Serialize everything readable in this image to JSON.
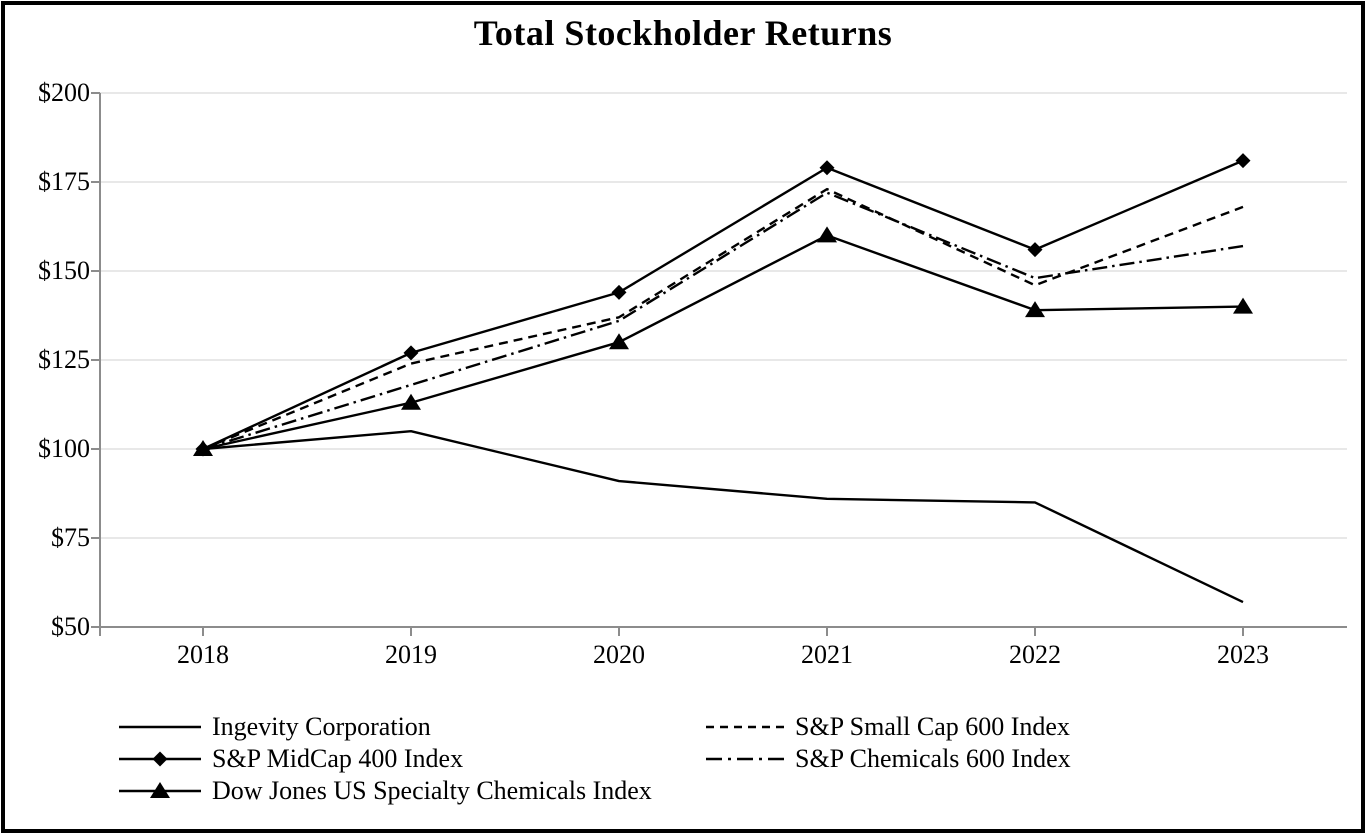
{
  "title": "Total Stockholder Returns",
  "colors": {
    "series_line": "#000000",
    "gridline": "#d9d9d9",
    "axis": "#8c8c8c",
    "border": "#000000",
    "background": "#ffffff"
  },
  "chart_data": {
    "type": "line",
    "title": "Total Stockholder Returns",
    "x": [
      2018,
      2019,
      2020,
      2021,
      2022,
      2023
    ],
    "x_tick_labels": [
      "2018",
      "2019",
      "2020",
      "2021",
      "2022",
      "2023"
    ],
    "y_tick_labels": [
      "$200",
      "$175",
      "$150",
      "$125",
      "$100",
      "$75",
      "$50"
    ],
    "ylim": [
      50,
      200
    ],
    "y_tick_step": 25,
    "grid": "horizontal-light",
    "legend_position": "bottom, two columns",
    "series": [
      {
        "name": "Ingevity Corporation",
        "line_style": "solid",
        "marker": "none",
        "values": [
          100,
          105,
          91,
          86,
          85,
          57
        ]
      },
      {
        "name": "S&P MidCap 400 Index",
        "line_style": "solid",
        "marker": "diamond",
        "values": [
          100,
          127,
          144,
          179,
          156,
          181
        ]
      },
      {
        "name": "Dow Jones US Specialty Chemicals Index",
        "line_style": "solid",
        "marker": "triangle",
        "values": [
          100,
          113,
          130,
          160,
          139,
          140
        ]
      },
      {
        "name": "S&P Small Cap 600 Index",
        "line_style": "dashed",
        "marker": "none",
        "values": [
          100,
          124,
          137,
          173,
          146,
          168
        ]
      },
      {
        "name": "S&P Chemicals 600 Index",
        "line_style": "dash-dot",
        "marker": "none",
        "values": [
          100,
          118,
          136,
          172,
          148,
          157
        ]
      }
    ],
    "legend_layout": {
      "left_column": [
        "Ingevity Corporation",
        "S&P MidCap 400 Index",
        "Dow Jones US Specialty Chemicals Index"
      ],
      "right_column": [
        "S&P Small Cap 600 Index",
        "S&P Chemicals 600 Index"
      ]
    }
  }
}
